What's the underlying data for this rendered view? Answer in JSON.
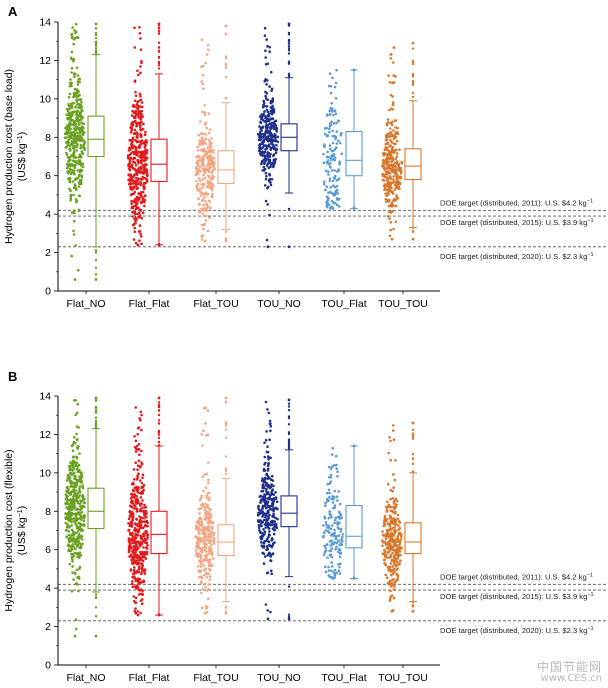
{
  "figure": {
    "watermark": {
      "line1": "中国节能网",
      "line2": "www.CES.cn"
    }
  },
  "chart_data": [
    {
      "type": "box-with-jitter",
      "panel_label": "A",
      "ylabel_line1": "Hydrogen production cost (base load)",
      "ylabel_line2": "(US$ kg",
      "ylabel_sup": "−1",
      "ylabel_close": ")",
      "ylim": [
        0,
        14
      ],
      "yticks": [
        0,
        2,
        4,
        6,
        8,
        10,
        12,
        14
      ],
      "categories": [
        "Flat_NO",
        "Flat_Flat",
        "Flat_TOU",
        "TOU_NO",
        "TOU_Flat",
        "TOU_TOU"
      ],
      "colors": [
        "#6aa121",
        "#e31a1c",
        "#f4a582",
        "#1f2f8c",
        "#5b9bd5",
        "#d9782c"
      ],
      "boxes": [
        {
          "category": "Flat_NO",
          "whisker_low": 2.3,
          "q1": 7.0,
          "median": 7.9,
          "q3": 9.1,
          "whisker_high": 12.3,
          "min": 0.6,
          "max": 13.9,
          "n_points": 420
        },
        {
          "category": "Flat_Flat",
          "whisker_low": 2.4,
          "q1": 5.7,
          "median": 6.6,
          "q3": 7.9,
          "whisker_high": 11.3,
          "min": 2.4,
          "max": 13.9,
          "n_points": 420
        },
        {
          "category": "Flat_TOU",
          "whisker_low": 3.2,
          "q1": 5.6,
          "median": 6.3,
          "q3": 7.3,
          "whisker_high": 9.8,
          "min": 2.6,
          "max": 13.8,
          "n_points": 260
        },
        {
          "category": "TOU_NO",
          "whisker_low": 5.1,
          "q1": 7.3,
          "median": 8.0,
          "q3": 8.7,
          "whisker_high": 11.1,
          "min": 2.3,
          "max": 13.9,
          "n_points": 300
        },
        {
          "category": "TOU_Flat",
          "whisker_low": 4.3,
          "q1": 6.0,
          "median": 6.8,
          "q3": 8.3,
          "whisker_high": 11.5,
          "min": 4.3,
          "max": 11.5,
          "n_points": 160
        },
        {
          "category": "TOU_TOU",
          "whisker_low": 3.3,
          "q1": 5.8,
          "median": 6.5,
          "q3": 7.4,
          "whisker_high": 9.9,
          "min": 2.7,
          "max": 12.9,
          "n_points": 300
        }
      ],
      "reference_lines": [
        {
          "value": 4.2,
          "label": "DOE target (distributed, 2011): U.S. $4.2 kg",
          "sup": "−1"
        },
        {
          "value": 3.9,
          "label": "DOE target (distributed, 2015): U.S. $3.9 kg",
          "sup": "−1"
        },
        {
          "value": 2.3,
          "label": "DOE target (distributed, 2020): U.S. $2.3 kg",
          "sup": "−1"
        }
      ]
    },
    {
      "type": "box-with-jitter",
      "panel_label": "B",
      "ylabel_line1": "Hydrogen production cost (flexible)",
      "ylabel_line2": "(US$ kg",
      "ylabel_sup": "−1",
      "ylabel_close": ")",
      "ylim": [
        0,
        14
      ],
      "yticks": [
        0,
        2,
        4,
        6,
        8,
        10,
        12,
        14
      ],
      "categories": [
        "Flat_NO",
        "Flat_Flat",
        "Flat_TOU",
        "TOU_NO",
        "TOU_Flat",
        "TOU_TOU"
      ],
      "colors": [
        "#6aa121",
        "#e31a1c",
        "#f4a582",
        "#1f2f8c",
        "#5b9bd5",
        "#d9782c"
      ],
      "boxes": [
        {
          "category": "Flat_NO",
          "whisker_low": 3.8,
          "q1": 7.1,
          "median": 8.0,
          "q3": 9.2,
          "whisker_high": 12.3,
          "min": 1.5,
          "max": 13.9,
          "n_points": 420
        },
        {
          "category": "Flat_Flat",
          "whisker_low": 2.6,
          "q1": 5.8,
          "median": 6.8,
          "q3": 8.0,
          "whisker_high": 11.4,
          "min": 2.6,
          "max": 13.9,
          "n_points": 420
        },
        {
          "category": "Flat_TOU",
          "whisker_low": 3.3,
          "q1": 5.7,
          "median": 6.4,
          "q3": 7.3,
          "whisker_high": 9.7,
          "min": 2.7,
          "max": 13.9,
          "n_points": 260
        },
        {
          "category": "TOU_NO",
          "whisker_low": 4.6,
          "q1": 7.2,
          "median": 7.9,
          "q3": 8.8,
          "whisker_high": 11.2,
          "min": 2.4,
          "max": 13.8,
          "n_points": 300
        },
        {
          "category": "TOU_Flat",
          "whisker_low": 4.5,
          "q1": 6.1,
          "median": 6.7,
          "q3": 8.3,
          "whisker_high": 11.4,
          "min": 4.5,
          "max": 11.4,
          "n_points": 160
        },
        {
          "category": "TOU_TOU",
          "whisker_low": 3.3,
          "q1": 5.8,
          "median": 6.4,
          "q3": 7.4,
          "whisker_high": 10.0,
          "min": 2.8,
          "max": 12.6,
          "n_points": 300
        }
      ],
      "reference_lines": [
        {
          "value": 4.2,
          "label": "DOE target (distributed, 2011): U.S. $4.2 kg",
          "sup": "−1"
        },
        {
          "value": 3.9,
          "label": "DOE target (distributed, 2015): U.S. $3.9 kg",
          "sup": "−1"
        },
        {
          "value": 2.3,
          "label": "DOE target (distributed, 2020): U.S. $2.3 kg",
          "sup": "−1"
        }
      ]
    }
  ]
}
